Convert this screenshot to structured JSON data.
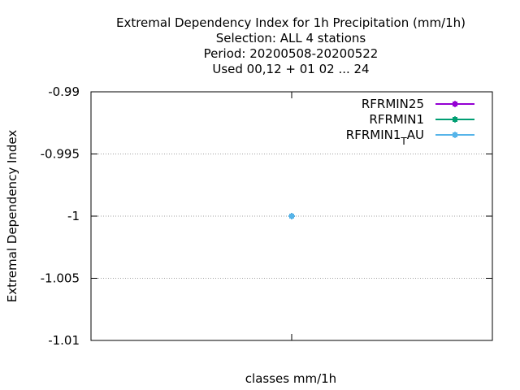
{
  "chart_data": {
    "type": "line",
    "title_lines": [
      "Extremal Dependency Index  for 1h Precipitation (mm/1h)",
      "Selection: ALL      4 stations",
      "Period: 20200508-20200522",
      "Used  00,12  + 01 02 ... 24"
    ],
    "xlabel": "classes mm/1h",
    "ylabel": "Extremal Dependency Index",
    "ylim": [
      -1.01,
      -0.99
    ],
    "yticks": [
      -0.99,
      -0.995,
      -1,
      -1.005,
      -1.01
    ],
    "ytick_labels": [
      "-0.99",
      "-0.995",
      "-1",
      "-1.005",
      "-1.01"
    ],
    "xlim": [
      0,
      2
    ],
    "x": [
      1
    ],
    "grid": true,
    "legend_position": "top-right",
    "series": [
      {
        "name": "RFRMIN25",
        "name_parts": [
          "RFRMIN25"
        ],
        "color": "#9400d3",
        "values": [
          -1
        ]
      },
      {
        "name": "RFRMIN1",
        "name_parts": [
          "RFRMIN1"
        ],
        "color": "#009e73",
        "values": [
          -1
        ]
      },
      {
        "name": "RFRMIN1_TAU",
        "name_parts": [
          "RFRMIN1",
          "T",
          "AU"
        ],
        "color": "#56b4e9",
        "values": [
          -1
        ]
      }
    ]
  }
}
